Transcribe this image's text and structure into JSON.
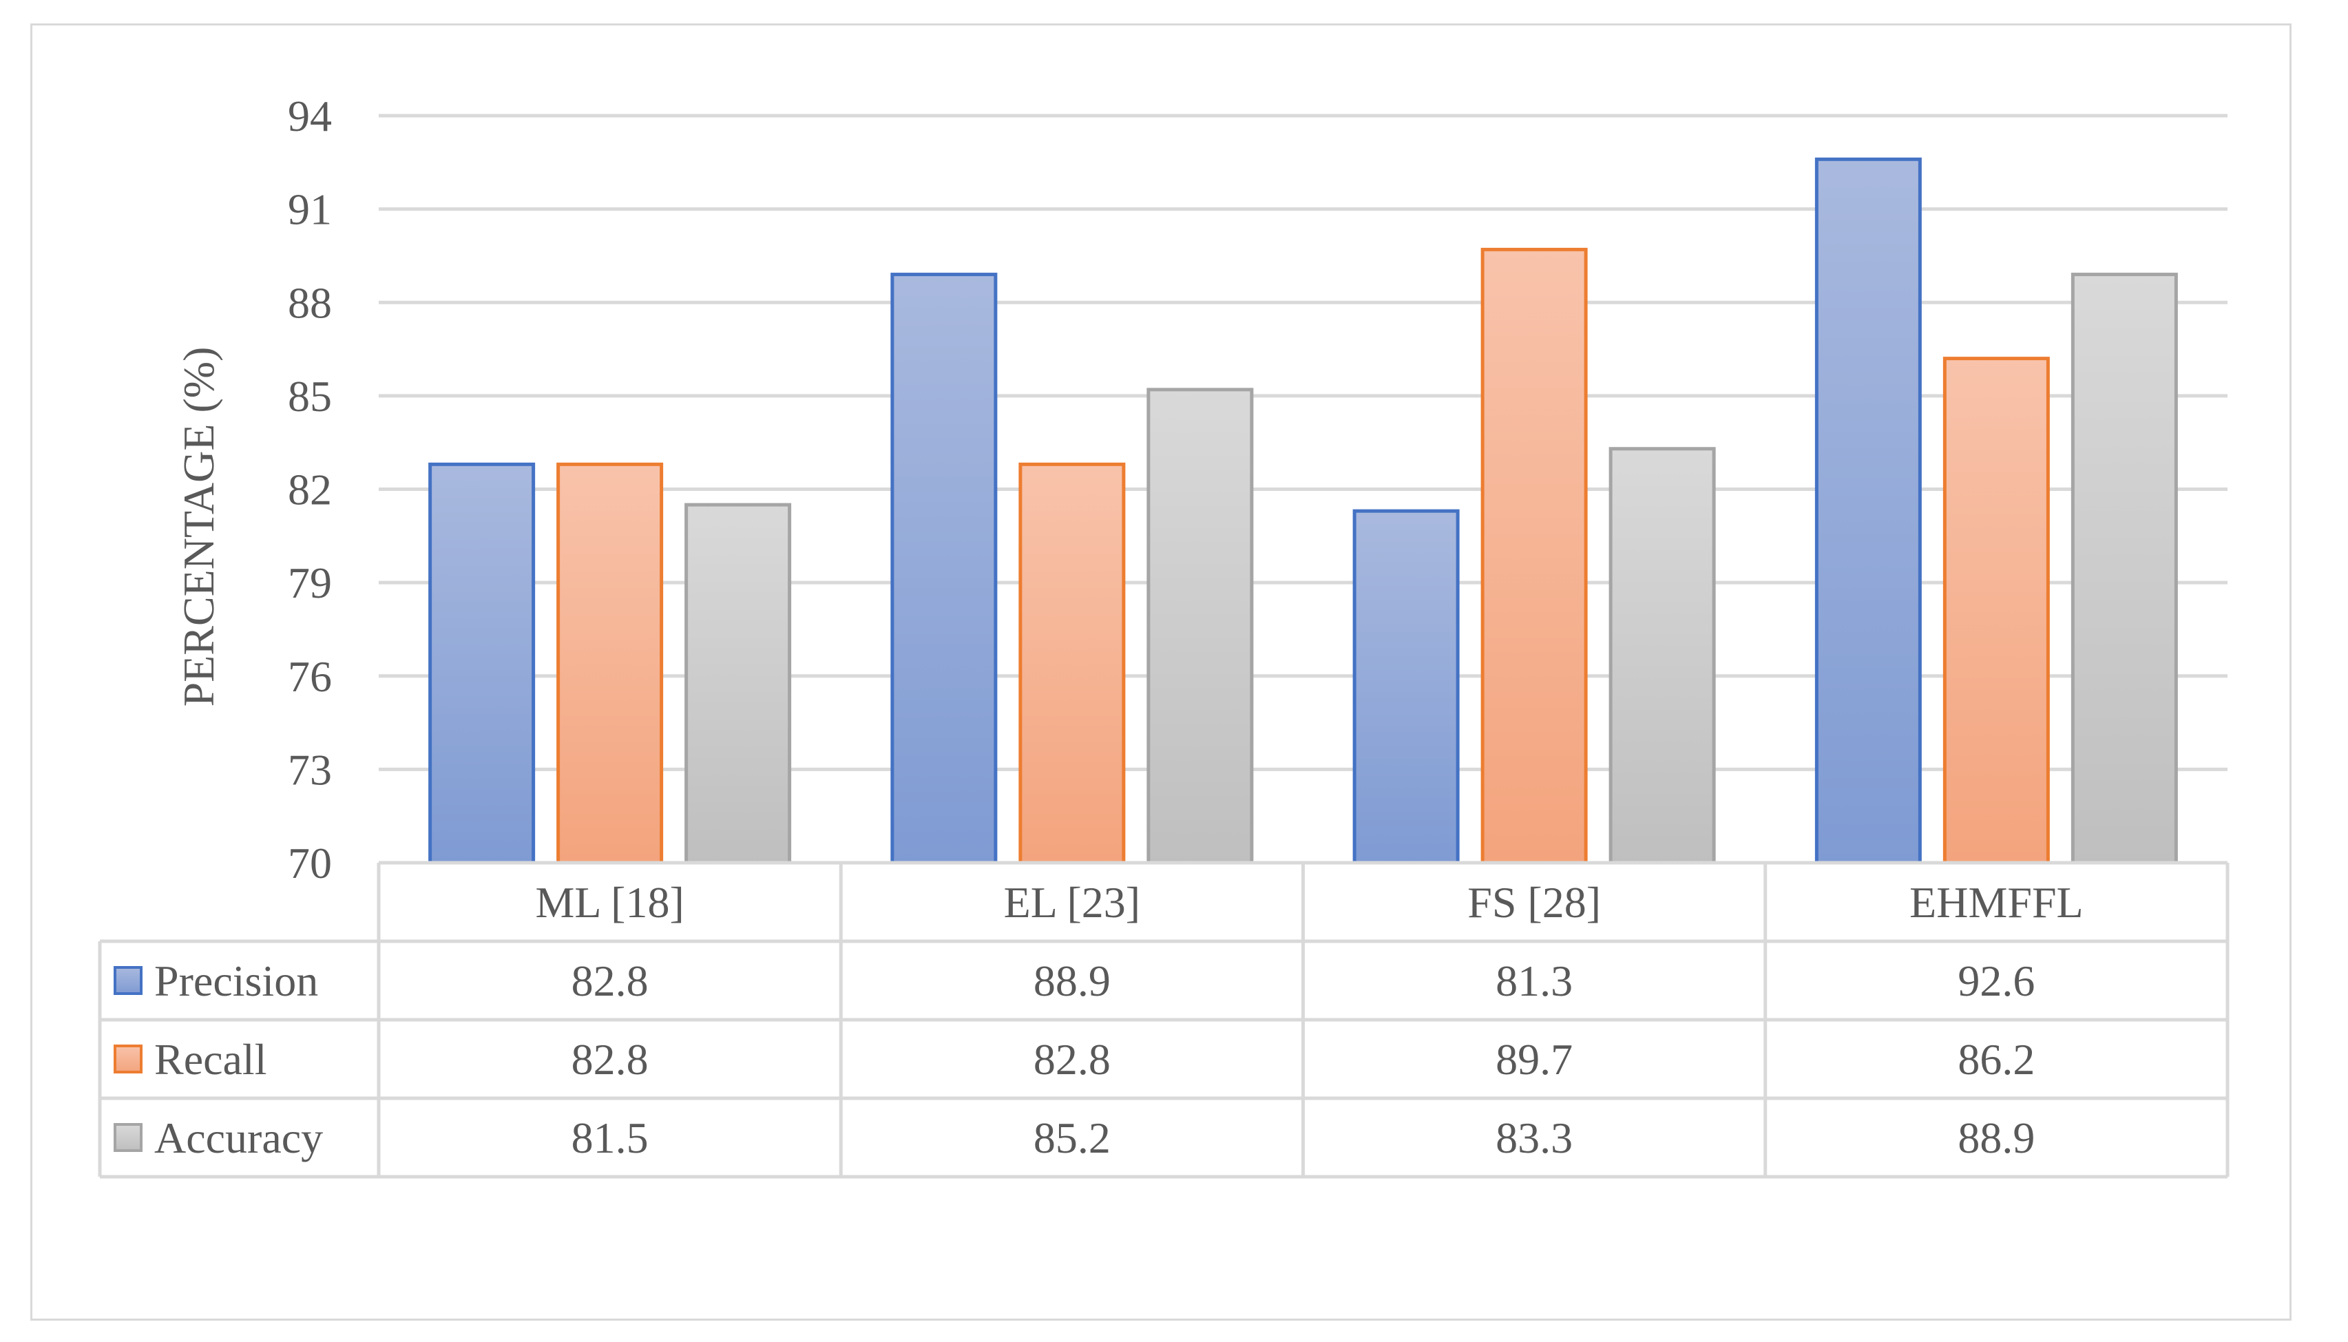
{
  "chart_data": {
    "type": "bar",
    "title": "",
    "xlabel": "",
    "ylabel": "PERCENTAGE (%)",
    "ylim": [
      70,
      94
    ],
    "yticks": [
      "94",
      "91",
      "88",
      "85",
      "82",
      "79",
      "76",
      "73",
      "70"
    ],
    "ytick_values": [
      94,
      91,
      88,
      85,
      82,
      79,
      76,
      73,
      70
    ],
    "grid": true,
    "legend_placement": "data table below plot",
    "categories": [
      "ML [18]",
      "EL [23]",
      "FS [28]",
      "EHMFFL"
    ],
    "series": [
      {
        "name": "Precision",
        "values": [
          82.8,
          88.9,
          81.3,
          92.6
        ],
        "labels": [
          "82.8",
          "88.9",
          "81.3",
          "92.6"
        ],
        "color_top": "#a9b9de",
        "color_bottom": "#7f9bd3",
        "stroke": "#4472c4"
      },
      {
        "name": "Recall",
        "values": [
          82.8,
          82.8,
          89.7,
          86.2
        ],
        "labels": [
          "82.8",
          "82.8",
          "89.7",
          "86.2"
        ],
        "color_top": "#f8c3ab",
        "color_bottom": "#f3a47d",
        "stroke": "#ed7d31"
      },
      {
        "name": "Accuracy",
        "values": [
          81.5,
          85.2,
          83.3,
          88.9
        ],
        "labels": [
          "81.5",
          "85.2",
          "83.3",
          "88.9"
        ],
        "color_top": "#d9d9d9",
        "color_bottom": "#bfbfbf",
        "stroke": "#a5a5a5"
      }
    ]
  }
}
